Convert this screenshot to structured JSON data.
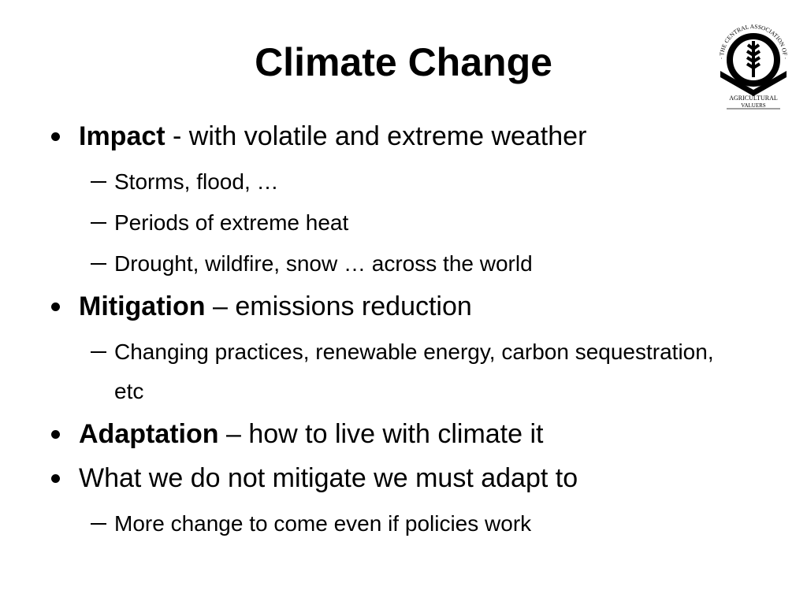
{
  "slide": {
    "title": "Climate Change",
    "logo": {
      "arc_text": "· THE CENTRAL ASSOCIATION OF ·",
      "line1": "AGRICULTURAL",
      "line2": "VALUERS"
    },
    "bullets": [
      {
        "bold": "Impact",
        "text": " - with volatile and extreme weather",
        "subs": [
          "Storms, flood, …",
          "Periods of extreme heat",
          "Drought, wildfire, snow … across the world"
        ]
      },
      {
        "bold": "Mitigation",
        "text": " – emissions reduction",
        "subs": [
          "Changing practices, renewable energy, carbon sequestration, etc"
        ]
      },
      {
        "bold": "Adaptation",
        "text": " – how to live with climate it",
        "subs": []
      },
      {
        "text": "What we do not mitigate we must adapt to",
        "subs": [
          "More change to come even if policies work"
        ]
      }
    ]
  }
}
